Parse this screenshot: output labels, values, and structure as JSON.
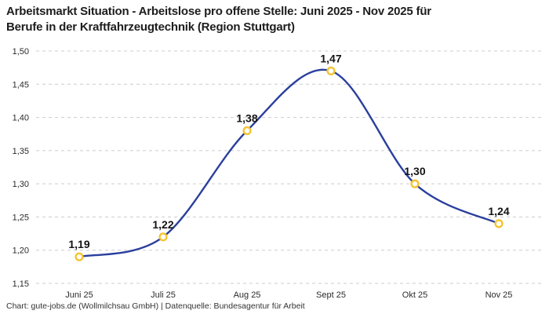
{
  "header": {
    "title_line1": "Arbeitsmarkt Situation - Arbeitslose pro offene Stelle: Juni 2025 - Nov 2025 für",
    "title_line2": "Berufe in der Kraftfahrzeugtechnik (Region Stuttgart)"
  },
  "chart_data": {
    "type": "line",
    "title": "Arbeitsmarkt Situation - Arbeitslose pro offene Stelle: Juni 2025 - Nov 2025 für Berufe in der Kraftfahrzeugtechnik (Region Stuttgart)",
    "categories": [
      "Juni 25",
      "Juli 25",
      "Aug 25",
      "Sept 25",
      "Okt 25",
      "Nov 25"
    ],
    "values": [
      1.19,
      1.22,
      1.38,
      1.47,
      1.3,
      1.24
    ],
    "point_labels": [
      "1,19",
      "1,22",
      "1,38",
      "1,47",
      "1,30",
      "1,24"
    ],
    "y_ticks": [
      {
        "value": 1.5,
        "label": "1,50"
      },
      {
        "value": 1.45,
        "label": "1,45"
      },
      {
        "value": 1.4,
        "label": "1,40"
      },
      {
        "value": 1.35,
        "label": "1,35"
      },
      {
        "value": 1.3,
        "label": "1,30"
      },
      {
        "value": 1.25,
        "label": "1,25"
      },
      {
        "value": 1.2,
        "label": "1,20"
      },
      {
        "value": 1.15,
        "label": "1,15"
      }
    ],
    "ylim": [
      1.15,
      1.5
    ],
    "xlabel": "",
    "ylabel": "",
    "legend": "none",
    "grid": "horizontal-dashed",
    "colors": {
      "line": "#2a3f9d",
      "marker_ring": "#f5c330",
      "marker_fill": "#ffffff",
      "grid": "#cccccc",
      "title_text": "#1d1d1d",
      "tick_text": "#2b2b2b",
      "point_label_text": "#141414"
    }
  },
  "footer": {
    "credit": "Chart: gute-jobs.de (Wollmilchsau GmbH) | Datenquelle: Bundesagentur für Arbeit"
  }
}
